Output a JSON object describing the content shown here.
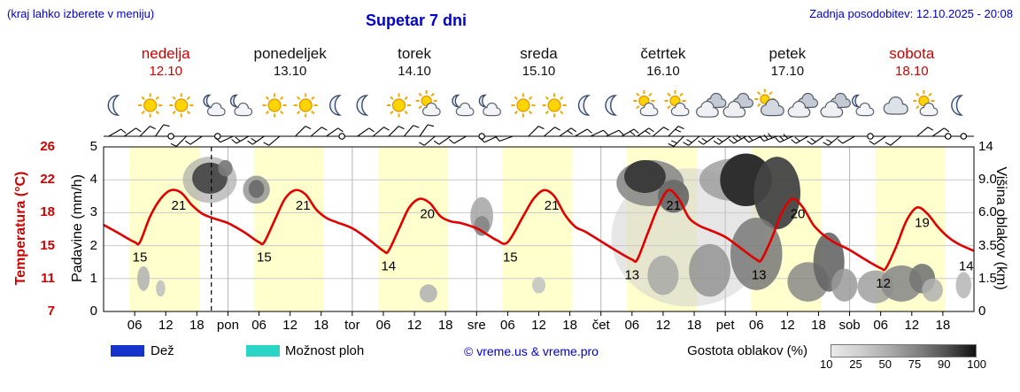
{
  "header": {
    "hint": "(kraj lahko izberete v meniju)",
    "title": "Supetar 7 dni",
    "updated": "Zadnja posodobitev: 12.10.2025 - 20:08"
  },
  "colors": {
    "accent_blue": "#0000cd",
    "accent_red": "#cc0000",
    "temp_line": "#e00000",
    "daylight_band": "#ffffce",
    "rain_legend": "#1533cc",
    "showers_legend": "#2ad5c5"
  },
  "day_headers": [
    {
      "name": "nedelja",
      "date": "12.10",
      "highlight": true
    },
    {
      "name": "ponedeljek",
      "date": "13.10",
      "highlight": false
    },
    {
      "name": "torek",
      "date": "14.10",
      "highlight": false
    },
    {
      "name": "sreda",
      "date": "15.10",
      "highlight": false
    },
    {
      "name": "četrtek",
      "date": "16.10",
      "highlight": false
    },
    {
      "name": "petek",
      "date": "17.10",
      "highlight": false
    },
    {
      "name": "sobota",
      "date": "18.10",
      "highlight": true
    }
  ],
  "axes": {
    "temp": {
      "label": "Temperatura (°C)",
      "ticks": [
        "26",
        "22",
        "18",
        "15",
        "11",
        "7"
      ]
    },
    "precip": {
      "label": "Padavine (mm/h)",
      "ticks": [
        "5",
        "4",
        "3",
        "2",
        "1",
        "0"
      ]
    },
    "cloud_height": {
      "label": "Višina oblakov (km)",
      "ticks": [
        "14",
        "9.0",
        "6.0",
        "3.5",
        "1.5",
        "0"
      ]
    },
    "bottom_labels": [
      "06",
      "12",
      "18",
      "pon",
      "06",
      "12",
      "18",
      "tor",
      "06",
      "12",
      "18",
      "sre",
      "06",
      "12",
      "18",
      "čet",
      "06",
      "12",
      "18",
      "pet",
      "06",
      "12",
      "18",
      "sob",
      "06",
      "12",
      "18"
    ]
  },
  "legend": {
    "rain_label": "Dež",
    "showers_label": "Možnost ploh",
    "copyright": "© vreme.us & vreme.pro",
    "cloud_density_label": "Gostota oblakov (%)",
    "density_ticks": [
      "10",
      "25",
      "50",
      "75",
      "90",
      "100"
    ]
  },
  "chart_data": {
    "type": "line",
    "title": "Supetar 7 dni",
    "x_unit": "hours from nedelja 00:00",
    "x_range_hours": [
      0,
      168
    ],
    "temp_axis_c": [
      7,
      26
    ],
    "precip_axis_mm": [
      0,
      5
    ],
    "cloud_height_axis_km": [
      0,
      14
    ],
    "daylight_hours": [
      5.0,
      18.5
    ],
    "now_hour": 20.8,
    "temperature_c": {
      "series_name": "Temperatura",
      "points": [
        [
          0,
          17
        ],
        [
          3,
          16
        ],
        [
          6,
          15
        ],
        [
          7,
          15
        ],
        [
          9,
          18
        ],
        [
          11,
          20
        ],
        [
          13,
          21
        ],
        [
          15,
          20.7
        ],
        [
          17,
          19.3
        ],
        [
          19,
          18.3
        ],
        [
          21,
          17.8
        ],
        [
          24,
          17.2
        ],
        [
          27,
          16.2
        ],
        [
          30,
          15
        ],
        [
          31,
          15
        ],
        [
          33,
          17.5
        ],
        [
          35,
          20
        ],
        [
          37,
          21
        ],
        [
          39,
          20.5
        ],
        [
          41,
          18.8
        ],
        [
          43,
          17.8
        ],
        [
          45,
          17.3
        ],
        [
          48,
          16.6
        ],
        [
          51,
          15.4
        ],
        [
          54,
          14
        ],
        [
          55,
          14
        ],
        [
          57,
          16.5
        ],
        [
          59,
          19
        ],
        [
          61,
          20
        ],
        [
          63,
          19.5
        ],
        [
          65,
          18
        ],
        [
          67,
          17.4
        ],
        [
          69,
          17.2
        ],
        [
          72,
          16.6
        ],
        [
          74,
          15.9
        ],
        [
          76,
          15.2
        ],
        [
          78,
          15
        ],
        [
          81,
          18
        ],
        [
          83,
          20
        ],
        [
          85,
          21
        ],
        [
          87,
          20.3
        ],
        [
          89,
          18.2
        ],
        [
          91,
          16.8
        ],
        [
          93,
          16.2
        ],
        [
          96,
          15.1
        ],
        [
          99,
          14
        ],
        [
          102,
          13
        ],
        [
          103,
          13
        ],
        [
          105,
          16
        ],
        [
          107,
          19
        ],
        [
          109,
          21
        ],
        [
          111,
          20
        ],
        [
          113,
          17.8
        ],
        [
          115,
          16.9
        ],
        [
          117,
          16.4
        ],
        [
          120,
          15.6
        ],
        [
          123,
          14.3
        ],
        [
          126,
          13
        ],
        [
          127,
          13
        ],
        [
          129,
          15.5
        ],
        [
          131,
          18.5
        ],
        [
          133,
          20
        ],
        [
          135,
          19
        ],
        [
          137,
          17
        ],
        [
          139,
          15.8
        ],
        [
          141,
          15
        ],
        [
          144,
          14.1
        ],
        [
          147,
          13
        ],
        [
          150,
          12
        ],
        [
          151,
          12
        ],
        [
          153,
          14.5
        ],
        [
          155,
          17.5
        ],
        [
          157,
          19
        ],
        [
          159,
          18.3
        ],
        [
          161,
          16.8
        ],
        [
          163,
          15.6
        ],
        [
          165,
          14.8
        ],
        [
          168,
          14
        ]
      ]
    },
    "extreme_labels": [
      {
        "hour": 7,
        "value": 15
      },
      {
        "hour": 14.5,
        "value": 21
      },
      {
        "hour": 31,
        "value": 15
      },
      {
        "hour": 38.5,
        "value": 21
      },
      {
        "hour": 55,
        "value": 14
      },
      {
        "hour": 62.5,
        "value": 20
      },
      {
        "hour": 78.5,
        "value": 15
      },
      {
        "hour": 86.5,
        "value": 21
      },
      {
        "hour": 102,
        "value": 13
      },
      {
        "hour": 110,
        "value": 21
      },
      {
        "hour": 126.5,
        "value": 13
      },
      {
        "hour": 134,
        "value": 20
      },
      {
        "hour": 150.5,
        "value": 12
      },
      {
        "hour": 158,
        "value": 19
      },
      {
        "hour": 166.5,
        "value": 14
      }
    ],
    "weather_icons": [
      [
        "moon",
        "sun",
        "sun",
        "moon-cloud"
      ],
      [
        "moon-cloud",
        "sun",
        "sun",
        "moon"
      ],
      [
        "moon",
        "sun",
        "sun-cloud",
        "moon-cloud"
      ],
      [
        "moon-cloud",
        "sun",
        "sun",
        "moon"
      ],
      [
        "moon",
        "sun-cloud",
        "sun-cloud",
        "clouds"
      ],
      [
        "clouds",
        "cloud-sun",
        "clouds",
        "clouds"
      ],
      [
        "moon-cloud",
        "cloud",
        "sun-cloud",
        "moon"
      ]
    ],
    "wind_barbs": [
      [
        1,
        60,
        1
      ],
      [
        4,
        55,
        1
      ],
      [
        7,
        45,
        1
      ],
      [
        10,
        35,
        1
      ],
      [
        13,
        null,
        0
      ],
      [
        16,
        225,
        1
      ],
      [
        19,
        235,
        1
      ],
      [
        22,
        null,
        0
      ],
      [
        25,
        245,
        1
      ],
      [
        28,
        240,
        2
      ],
      [
        31,
        235,
        2
      ],
      [
        34,
        230,
        1
      ],
      [
        37,
        45,
        1
      ],
      [
        40,
        50,
        1
      ],
      [
        43,
        55,
        1
      ],
      [
        46,
        null,
        0
      ],
      [
        49,
        55,
        1
      ],
      [
        52,
        50,
        1
      ],
      [
        55,
        45,
        1
      ],
      [
        58,
        40,
        1
      ],
      [
        61,
        35,
        1
      ],
      [
        64,
        230,
        1
      ],
      [
        67,
        235,
        1
      ],
      [
        70,
        240,
        1
      ],
      [
        73,
        null,
        0
      ],
      [
        76,
        245,
        1
      ],
      [
        79,
        250,
        1
      ],
      [
        82,
        45,
        1
      ],
      [
        85,
        50,
        1
      ],
      [
        88,
        55,
        2
      ],
      [
        91,
        60,
        1
      ],
      [
        94,
        65,
        1
      ],
      [
        97,
        65,
        1
      ],
      [
        100,
        60,
        2
      ],
      [
        103,
        55,
        2
      ],
      [
        106,
        50,
        1
      ],
      [
        109,
        45,
        2
      ],
      [
        112,
        225,
        2
      ],
      [
        115,
        230,
        2
      ],
      [
        118,
        235,
        2
      ],
      [
        121,
        235,
        2
      ],
      [
        124,
        240,
        3
      ],
      [
        127,
        245,
        2
      ],
      [
        130,
        250,
        3
      ],
      [
        133,
        245,
        3
      ],
      [
        136,
        240,
        2
      ],
      [
        139,
        235,
        2
      ],
      [
        142,
        230,
        2
      ],
      [
        145,
        240,
        1
      ],
      [
        148,
        null,
        0
      ],
      [
        151,
        235,
        1
      ],
      [
        154,
        230,
        1
      ],
      [
        157,
        50,
        1
      ],
      [
        160,
        55,
        1
      ],
      [
        163,
        null,
        0
      ],
      [
        166,
        null,
        0
      ]
    ],
    "cloud_cover_blobs": [
      [
        20.5,
        0.8,
        5.2,
        0.14,
        "#ababab",
        0.7
      ],
      [
        20.5,
        0.81,
        3.4,
        0.095,
        "#4f4f4f",
        1
      ],
      [
        23.5,
        0.87,
        1.4,
        0.05,
        "#7a7a7a",
        0.9
      ],
      [
        29.5,
        0.74,
        2.6,
        0.085,
        "#9b9b9b",
        0.9
      ],
      [
        29.5,
        0.745,
        1.5,
        0.055,
        "#6f6f6f",
        1
      ],
      [
        7.7,
        0.2,
        1.2,
        0.075,
        "#b5b5b5",
        0.9
      ],
      [
        11,
        0.14,
        0.9,
        0.05,
        "#c2c2c2",
        0.9
      ],
      [
        62.7,
        0.11,
        1.7,
        0.055,
        "#b5b5b5",
        0.9
      ],
      [
        73,
        0.58,
        2.2,
        0.115,
        "#a5a5a5",
        0.85
      ],
      [
        73,
        0.52,
        1.5,
        0.06,
        "#8a8a8a",
        1
      ],
      [
        84,
        0.16,
        1.3,
        0.05,
        "#c5c5c5",
        0.9
      ],
      [
        113,
        0.45,
        15,
        0.42,
        "#cdcdcd",
        0.5
      ],
      [
        105.5,
        0.78,
        6.5,
        0.14,
        "#8a8a8a",
        0.9
      ],
      [
        104.5,
        0.82,
        4,
        0.1,
        "#3c3c3c",
        1
      ],
      [
        110,
        0.7,
        3,
        0.1,
        "#6a6a6a",
        0.95
      ],
      [
        122,
        0.8,
        7,
        0.13,
        "#9a9a9a",
        0.8
      ],
      [
        124,
        0.8,
        5,
        0.16,
        "#2f2f2f",
        1
      ],
      [
        130,
        0.72,
        4.5,
        0.22,
        "#454545",
        0.95
      ],
      [
        126,
        0.35,
        5,
        0.22,
        "#787878",
        0.85
      ],
      [
        117,
        0.25,
        4,
        0.16,
        "#8f8f8f",
        0.8
      ],
      [
        108,
        0.22,
        3,
        0.12,
        "#a5a5a5",
        0.8
      ],
      [
        136,
        0.18,
        4,
        0.12,
        "#8a8a8a",
        0.85
      ],
      [
        140,
        0.3,
        3,
        0.18,
        "#666666",
        0.9
      ],
      [
        143,
        0.16,
        2.5,
        0.1,
        "#9a9a9a",
        0.85
      ],
      [
        149,
        0.15,
        3.5,
        0.1,
        "#a0a0a0",
        0.85
      ],
      [
        154,
        0.17,
        4,
        0.11,
        "#8c8c8c",
        0.9
      ],
      [
        158,
        0.2,
        2.5,
        0.09,
        "#777777",
        0.9
      ],
      [
        160,
        0.13,
        2,
        0.07,
        "#b0b0b0",
        0.85
      ],
      [
        166,
        0.16,
        1.5,
        0.08,
        "#b5b5b5",
        0.85
      ]
    ]
  }
}
